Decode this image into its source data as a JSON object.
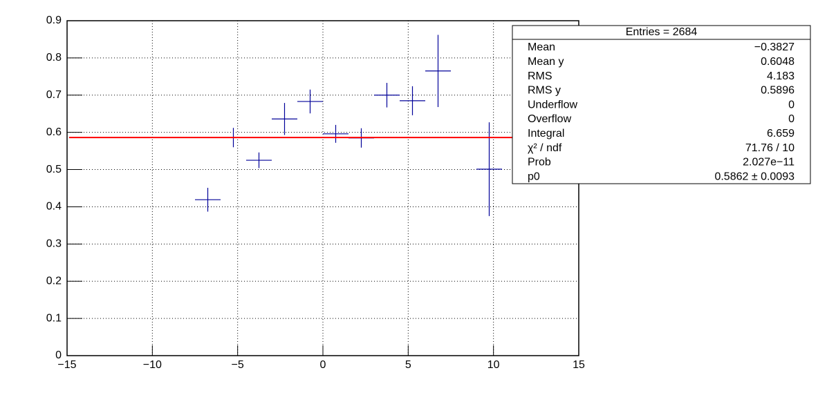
{
  "chart_data": {
    "type": "errorbar",
    "x": [
      -6.75,
      -5.25,
      -3.75,
      -2.25,
      -0.75,
      0.75,
      2.25,
      3.75,
      5.25,
      6.75,
      9.75
    ],
    "x_errors": [
      0.75,
      0.75,
      0.75,
      0.75,
      0.75,
      0.75,
      0.75,
      0.75,
      0.75,
      0.75,
      0.75
    ],
    "series": [
      {
        "color": "#000099",
        "values": [
          0.419,
          0.586,
          0.525,
          0.636,
          0.683,
          0.596,
          0.585,
          0.7,
          0.685,
          0.765,
          0.501
        ],
        "errors": [
          0.032,
          0.026,
          0.021,
          0.043,
          0.032,
          0.024,
          0.026,
          0.033,
          0.039,
          0.097,
          0.126
        ]
      }
    ],
    "fit": {
      "value": 0.5862,
      "color": "#ff0000"
    },
    "xlim": [
      -15,
      15
    ],
    "xticks": [
      {
        "value": -15,
        "label": "−15"
      },
      {
        "value": -10,
        "label": "−10"
      },
      {
        "value": -5,
        "label": "−5"
      },
      0,
      5,
      10,
      15
    ],
    "ylim": [
      0,
      0.9
    ],
    "yticks": [
      0,
      0.1,
      0.2,
      0.3,
      0.4,
      0.5,
      0.6,
      0.7,
      0.8,
      0.9
    ],
    "grid": true,
    "stats": {
      "header": "Entries = 2684",
      "rows": [
        [
          "Mean",
          "−0.3827"
        ],
        [
          "Mean y",
          "0.6048"
        ],
        [
          "RMS",
          "4.183"
        ],
        [
          "RMS y",
          "0.5896"
        ],
        [
          "Underflow",
          "0"
        ],
        [
          "Overflow",
          "0"
        ],
        [
          "Integral",
          "6.659"
        ],
        [
          "χ² / ndf",
          "71.76 / 10"
        ],
        [
          "Prob",
          "2.027e−11"
        ],
        [
          "p0",
          "0.5862 ± 0.0093"
        ]
      ]
    }
  }
}
